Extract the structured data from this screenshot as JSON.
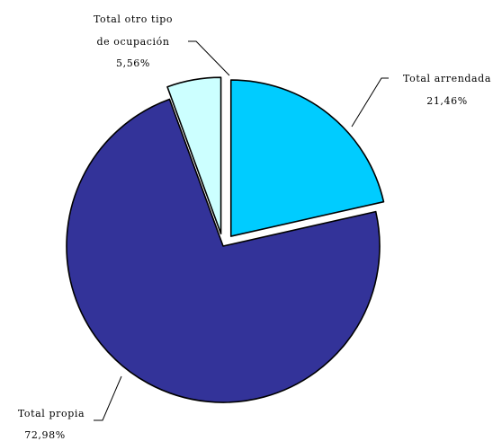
{
  "chart_data": {
    "type": "pie",
    "title": "",
    "slices": [
      {
        "name": "Total arrendada",
        "label_line1": "Total arrendada",
        "label_line2": "21,46%",
        "value": 21.46,
        "color": "#00ccff"
      },
      {
        "name": "Total propia",
        "label_line1": "Total propia",
        "label_line2": "72,98%",
        "value": 72.98,
        "color": "#333399"
      },
      {
        "name": "Total otro tipo de ocupación",
        "label_line1": "Total otro tipo",
        "label_line2": "de ocupación",
        "label_line3": "5,56%",
        "value": 5.56,
        "color": "#ccffff"
      }
    ],
    "exploded": true,
    "legend": "none"
  }
}
